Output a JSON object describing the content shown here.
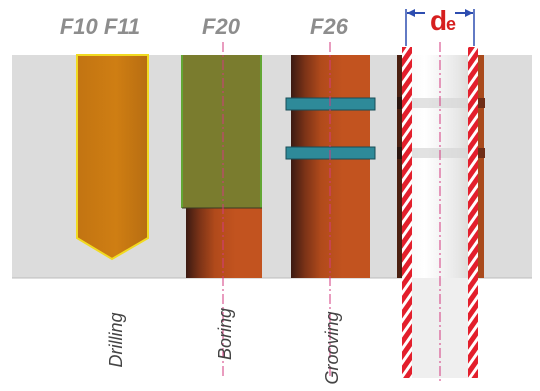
{
  "labels": {
    "drilling_code": "F10 F11",
    "boring_code": "F20",
    "grooving_code": "F26",
    "drilling": "Drilling",
    "boring": "Boring",
    "grooving": "Grooving",
    "diameter_main": "d",
    "diameter_sub": "e"
  },
  "colors": {
    "background": "#ffffff",
    "workpiece": "#dcdcdc",
    "workpiece_line": "#bdbdbd",
    "code_text": "#8d8d8d",
    "process_text": "#444444",
    "dimension_red": "#d61f1f",
    "dimension_blue": "#2d4db0",
    "centerline": "#d33a7f",
    "drill_fill": "#c97813",
    "drill_outline": "#f1da21",
    "boring_bar": "#7a7c2e",
    "boring_bar_edge": "#63a634",
    "hole_wall_dark": "#3b1a12",
    "hole_wall_mid": "#8b3d19",
    "hole_wall_orange": "#c2531f",
    "groove_band": "#2e8a99",
    "stripe_white": "#ffffff",
    "stripe_red": "#e31f2c",
    "bore_light": "#efefef"
  },
  "icons": {
    "dimension_arrow": "arrow-icon"
  }
}
